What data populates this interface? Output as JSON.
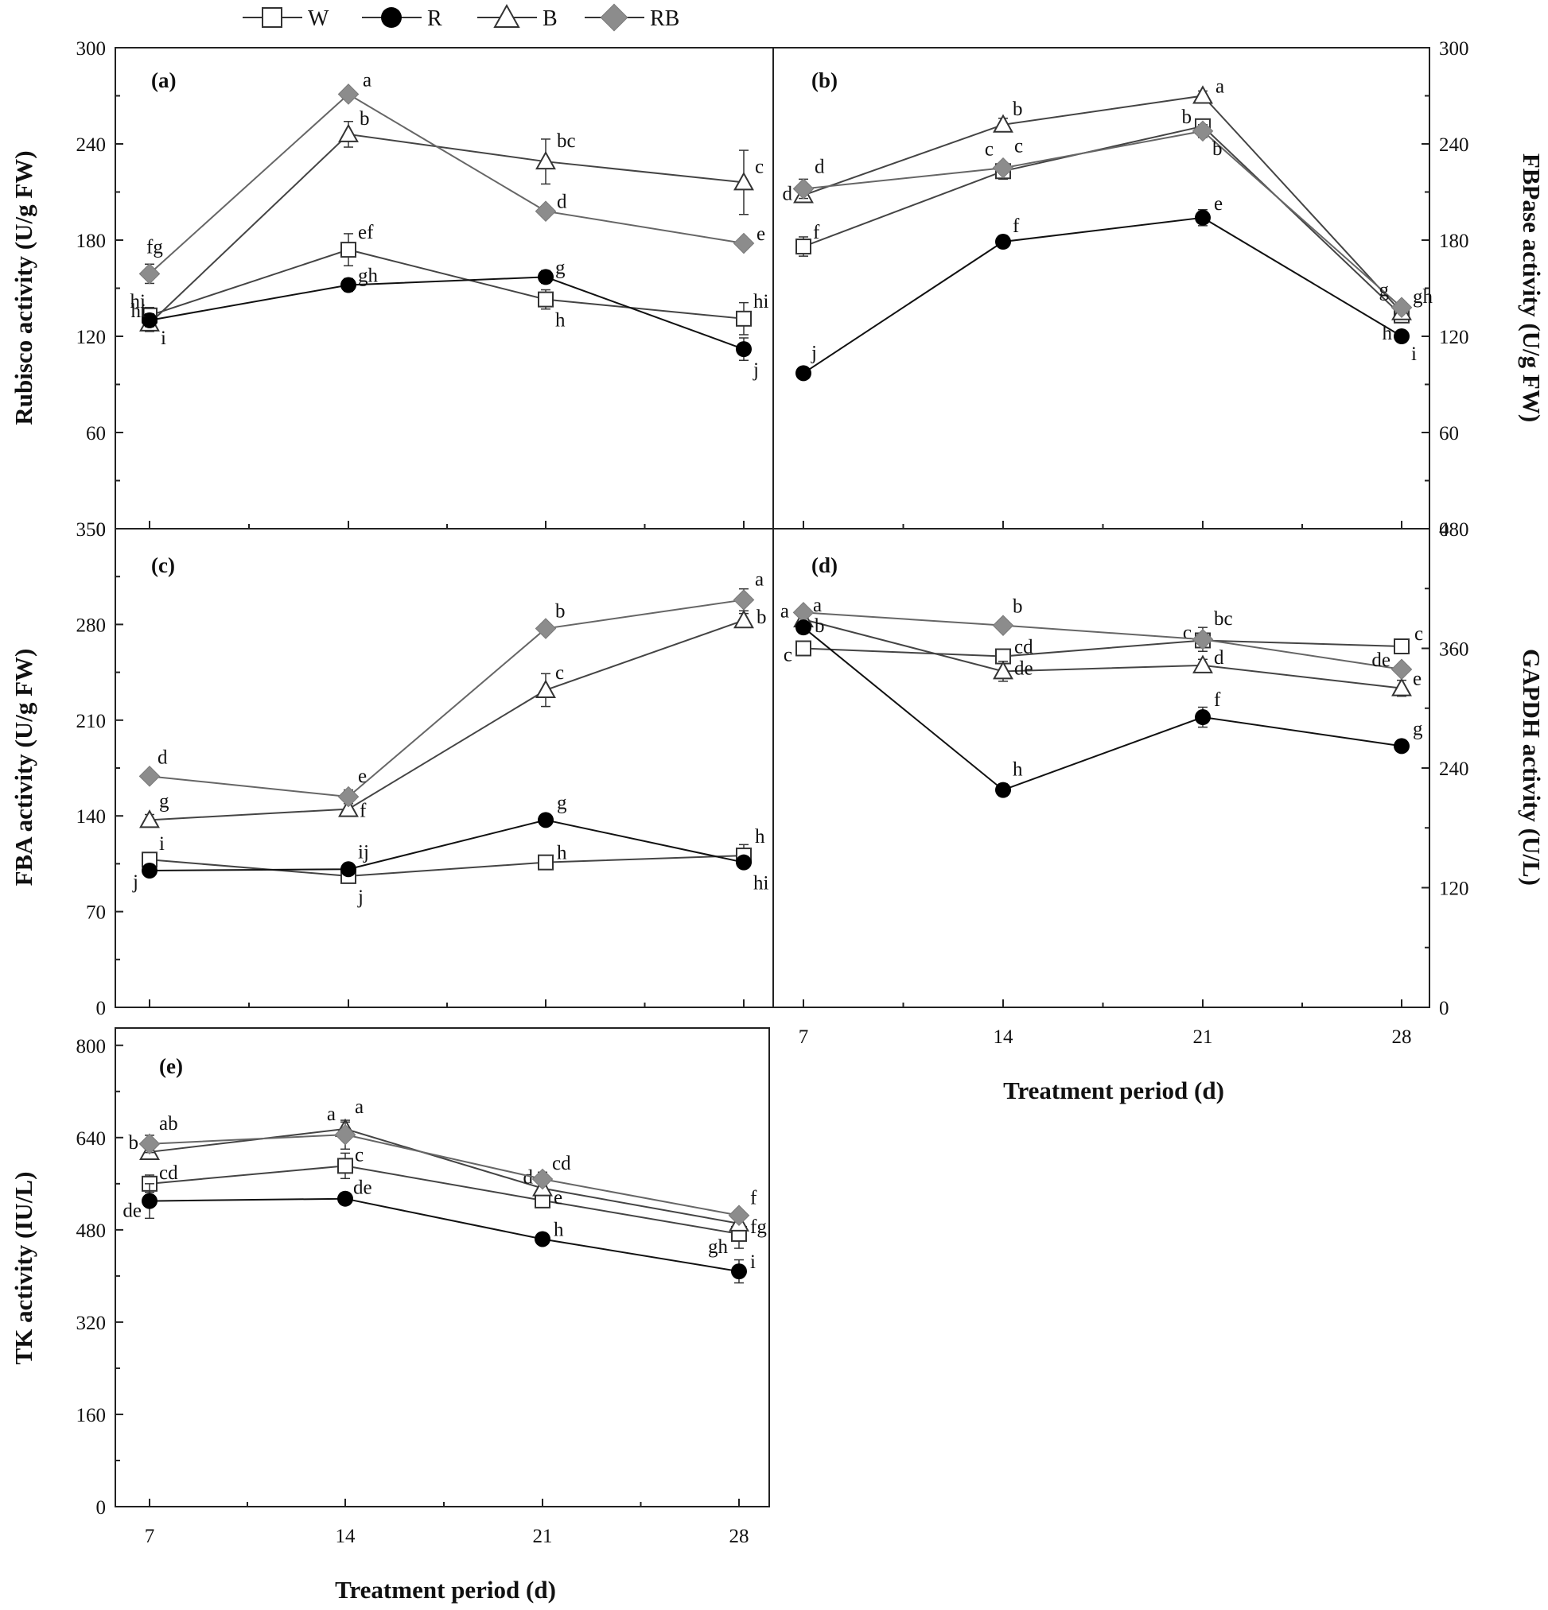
{
  "legend": [
    {
      "key": "W",
      "label": "W",
      "marker": "open-square"
    },
    {
      "key": "R",
      "label": "R",
      "marker": "filled-circle"
    },
    {
      "key": "B",
      "label": "B",
      "marker": "open-triangle"
    },
    {
      "key": "RB",
      "label": "RB",
      "marker": "filled-diamond"
    }
  ],
  "colors": {
    "line_W": "#444444",
    "line_R": "#111111",
    "line_B": "#444444",
    "line_RB": "#666666",
    "marker_RB": "#8c8c8c",
    "marker_R": "#000000"
  },
  "chart_data": [
    {
      "panel": "(a)",
      "type": "line",
      "ylabel": "Rubisco activity (U/g FW)",
      "yaxis_side": "left",
      "ylim": [
        0,
        300
      ],
      "yticks": [
        0,
        60,
        120,
        180,
        240,
        300
      ],
      "x": [
        7,
        14,
        21,
        28
      ],
      "series": [
        {
          "name": "W",
          "values": [
            133,
            174,
            143,
            131
          ],
          "errors": [
            5,
            10,
            6,
            10
          ],
          "letters": [
            "hi",
            "ef",
            "h",
            "hi"
          ]
        },
        {
          "name": "R",
          "values": [
            130,
            152,
            157,
            112
          ],
          "errors": [
            4,
            4,
            4,
            7
          ],
          "letters": [
            "hi",
            "gh",
            "g",
            "j"
          ]
        },
        {
          "name": "B",
          "values": [
            128,
            246,
            229,
            216
          ],
          "errors": [
            5,
            8,
            14,
            20
          ],
          "letters": [
            "i",
            "b",
            "bc",
            "c"
          ]
        },
        {
          "name": "RB",
          "values": [
            159,
            271,
            198,
            178
          ],
          "errors": [
            6,
            3,
            3,
            3
          ],
          "letters": [
            "fg",
            "a",
            "d",
            "e"
          ]
        }
      ]
    },
    {
      "panel": "(b)",
      "type": "line",
      "ylabel": "FBPase activity (U/g FW)",
      "yaxis_side": "right",
      "ylim": [
        0,
        300
      ],
      "yticks": [
        0,
        60,
        120,
        180,
        240,
        300
      ],
      "x": [
        7,
        14,
        21,
        28
      ],
      "series": [
        {
          "name": "W",
          "values": [
            176,
            223,
            251,
            133
          ],
          "errors": [
            6,
            5,
            3,
            3
          ],
          "letters": [
            "f",
            "c",
            "b",
            "h"
          ]
        },
        {
          "name": "R",
          "values": [
            97,
            179,
            194,
            120
          ],
          "errors": [
            3,
            3,
            5,
            3
          ],
          "letters": [
            "j",
            "f",
            "e",
            "i"
          ]
        },
        {
          "name": "B",
          "values": [
            208,
            252,
            270,
            135
          ],
          "errors": [
            4,
            4,
            3,
            3
          ],
          "letters": [
            "d",
            "b",
            "a",
            "gh"
          ]
        },
        {
          "name": "RB",
          "values": [
            212,
            225,
            248,
            138
          ],
          "errors": [
            6,
            3,
            4,
            3
          ],
          "letters": [
            "d",
            "c",
            "b",
            "g"
          ]
        }
      ]
    },
    {
      "panel": "(c)",
      "type": "line",
      "ylabel": "FBA activity (U/g FW)",
      "yaxis_side": "left",
      "ylim": [
        0,
        350
      ],
      "yticks": [
        0,
        70,
        140,
        210,
        280,
        350
      ],
      "x": [
        7,
        14,
        21,
        28
      ],
      "series": [
        {
          "name": "W",
          "values": [
            108,
            96,
            106,
            111
          ],
          "errors": [
            4,
            3,
            3,
            8
          ],
          "letters": [
            "i",
            "j",
            "h",
            "h"
          ]
        },
        {
          "name": "R",
          "values": [
            100,
            101,
            137,
            106
          ],
          "errors": [
            3,
            3,
            3,
            4
          ],
          "letters": [
            "j",
            "ij",
            "g",
            "hi"
          ]
        },
        {
          "name": "B",
          "values": [
            137,
            145,
            232,
            283
          ],
          "errors": [
            4,
            4,
            12,
            5
          ],
          "letters": [
            "g",
            "f",
            "c",
            "b"
          ]
        },
        {
          "name": "RB",
          "values": [
            169,
            154,
            277,
            298
          ],
          "errors": [
            3,
            5,
            3,
            8
          ],
          "letters": [
            "d",
            "e",
            "b",
            "a"
          ]
        }
      ]
    },
    {
      "panel": "(d)",
      "type": "line",
      "ylabel": "GAPDH activity (U/L)",
      "yaxis_side": "right",
      "ylim": [
        0,
        480
      ],
      "yticks": [
        0,
        120,
        240,
        360,
        480
      ],
      "x": [
        7,
        14,
        21,
        28
      ],
      "series": [
        {
          "name": "W",
          "values": [
            360,
            352,
            368,
            362
          ],
          "errors": [
            5,
            5,
            4,
            3
          ],
          "letters": [
            "c",
            "cd",
            "c",
            "c"
          ]
        },
        {
          "name": "R",
          "values": [
            381,
            218,
            291,
            262
          ],
          "errors": [
            6,
            6,
            10,
            3
          ],
          "letters": [
            "b",
            "h",
            "f",
            "g"
          ]
        },
        {
          "name": "B",
          "values": [
            389,
            337,
            343,
            320
          ],
          "errors": [
            5,
            10,
            6,
            8
          ],
          "letters": [
            "a",
            "de",
            "d",
            "e"
          ]
        },
        {
          "name": "RB",
          "values": [
            396,
            383,
            369,
            339
          ],
          "errors": [
            5,
            3,
            12,
            3
          ],
          "letters": [
            "a",
            "b",
            "bc",
            "de"
          ]
        }
      ]
    },
    {
      "panel": "(e)",
      "type": "line",
      "ylabel": "TK activity (IU/L)",
      "yaxis_side": "left",
      "ylim": [
        0,
        830
      ],
      "yticks": [
        0,
        160,
        320,
        480,
        640,
        800
      ],
      "x": [
        7,
        14,
        21,
        28
      ],
      "series": [
        {
          "name": "W",
          "values": [
            560,
            591,
            531,
            473
          ],
          "errors": [
            15,
            22,
            12,
            25
          ],
          "letters": [
            "cd",
            "c",
            "e",
            "gh"
          ]
        },
        {
          "name": "R",
          "values": [
            530,
            534,
            464,
            408
          ],
          "errors": [
            30,
            6,
            10,
            20
          ],
          "letters": [
            "de",
            "de",
            "h",
            "i"
          ]
        },
        {
          "name": "B",
          "values": [
            615,
            655,
            552,
            491
          ],
          "errors": [
            8,
            12,
            12,
            8
          ],
          "letters": [
            "b",
            "a",
            "d",
            "fg"
          ]
        },
        {
          "name": "RB",
          "values": [
            629,
            645,
            568,
            505
          ],
          "errors": [
            15,
            25,
            12,
            5
          ],
          "letters": [
            "ab",
            "a",
            "cd",
            "f"
          ]
        }
      ]
    }
  ],
  "xticks": [
    7,
    14,
    21,
    28
  ],
  "xlabel": "Treatment period (d)"
}
